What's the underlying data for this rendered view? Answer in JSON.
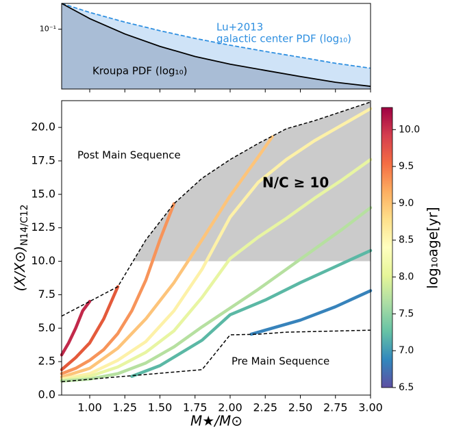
{
  "chart_data": [
    {
      "type": "line",
      "yscale": "log",
      "xlim": [
        0.8,
        3.0
      ],
      "ylim": [
        0.02,
        0.2
      ],
      "yticks": [
        {
          "value": 0.1,
          "label": "10⁻¹"
        }
      ],
      "annotations": [
        {
          "text": "Lu+2013",
          "color": "#2e8fe0"
        },
        {
          "text": "galactic center PDF (log₁₀)",
          "color": "#2e8fe0"
        },
        {
          "text": "Kroupa PDF (log₁₀)",
          "color": "#000000"
        }
      ],
      "series": [
        {
          "color": "#2e8fe0",
          "fill": "#cfe3f7",
          "linestyle": "dashed",
          "x": [
            0.8,
            1.0,
            1.25,
            1.5,
            1.75,
            2.0,
            2.25,
            2.5,
            2.75,
            3.0
          ],
          "values": [
            0.2,
            0.157,
            0.121,
            0.096,
            0.078,
            0.065,
            0.055,
            0.047,
            0.04,
            0.035
          ]
        },
        {
          "color": "#000000",
          "fill": "#a9bdd6",
          "linestyle": "solid",
          "x": [
            0.8,
            1.0,
            1.25,
            1.5,
            1.75,
            2.0,
            2.25,
            2.5,
            2.75,
            3.0
          ],
          "values": [
            0.2,
            0.133,
            0.088,
            0.063,
            0.048,
            0.039,
            0.033,
            0.028,
            0.024,
            0.0215
          ]
        }
      ]
    },
    {
      "type": "line",
      "xlim": [
        0.8,
        3.0
      ],
      "ylim": [
        0,
        22
      ],
      "xlabel": "M★/M⊙",
      "ylabel": "(X/X⊙)",
      "ylabel_sub": "N14/C12",
      "xticks": [
        {
          "value": 1,
          "label": "1.00"
        },
        1.25,
        {
          "value": 1.5,
          "label": "1.50"
        },
        1.75,
        {
          "value": 2,
          "label": "2.00"
        },
        2.25,
        {
          "value": 2.5,
          "label": "2.50"
        },
        2.75,
        {
          "value": 3,
          "label": "3.00"
        }
      ],
      "yticks": [
        {
          "value": 0,
          "label": "0.0"
        },
        2.5,
        {
          "value": 5,
          "label": "5.0"
        },
        7.5,
        {
          "value": 10,
          "label": "10.0"
        },
        12.5,
        {
          "value": 15,
          "label": "15.0"
        },
        17.5,
        {
          "value": 20,
          "label": "20.0"
        }
      ],
      "region_color": "#cbcbcb",
      "annotations": [
        {
          "text": "Post Main Sequence",
          "weight": "normal"
        },
        {
          "text": "Pre Main Sequence",
          "weight": "normal"
        },
        {
          "text": "N/C ≥ 10",
          "weight": "bold"
        }
      ],
      "series": [
        {
          "color": "#c2294a",
          "x": [
            0.8,
            0.85,
            0.9,
            0.95,
            1.0
          ],
          "values": [
            3.0,
            3.9,
            5.0,
            6.3,
            7.0
          ]
        },
        {
          "color": "#e45a3b",
          "x": [
            0.8,
            0.9,
            1.0,
            1.1,
            1.2
          ],
          "values": [
            1.9,
            2.8,
            3.9,
            5.7,
            8.1
          ]
        },
        {
          "color": "#f7945a",
          "x": [
            0.8,
            0.9,
            1.0,
            1.1,
            1.2,
            1.3,
            1.4,
            1.5,
            1.6
          ],
          "values": [
            1.6,
            2.0,
            2.6,
            3.4,
            4.6,
            6.3,
            8.6,
            11.6,
            14.3
          ]
        },
        {
          "color": "#fdc47a",
          "x": [
            0.8,
            1.0,
            1.2,
            1.4,
            1.6,
            1.8,
            2.0,
            2.2,
            2.3
          ],
          "values": [
            1.35,
            2.0,
            3.5,
            5.7,
            8.4,
            11.6,
            14.9,
            17.8,
            19.3
          ]
        },
        {
          "color": "#fdf1a8",
          "x": [
            0.8,
            1.0,
            1.2,
            1.4,
            1.6,
            1.8,
            2.0,
            2.2,
            2.4,
            2.6,
            2.8,
            3.0
          ],
          "values": [
            1.2,
            1.6,
            2.6,
            4.0,
            6.3,
            9.4,
            13.3,
            15.9,
            17.6,
            19.0,
            20.2,
            21.4
          ]
        },
        {
          "color": "#e8f5a2",
          "x": [
            0.8,
            1.0,
            1.2,
            1.4,
            1.6,
            1.8,
            2.0,
            2.2,
            2.4,
            2.6,
            2.8,
            3.0
          ],
          "values": [
            1.1,
            1.4,
            2.1,
            3.2,
            4.8,
            7.3,
            10.2,
            11.8,
            13.2,
            14.7,
            16.1,
            17.6
          ]
        },
        {
          "color": "#b6e0a0",
          "x": [
            0.8,
            1.0,
            1.2,
            1.4,
            1.6,
            1.8,
            2.0,
            2.2,
            2.4,
            2.6,
            2.8,
            3.0
          ],
          "values": [
            1.05,
            1.2,
            1.6,
            2.4,
            3.6,
            5.1,
            6.5,
            7.9,
            9.4,
            10.9,
            12.4,
            14.0
          ]
        },
        {
          "color": "#5bb8a5",
          "x": [
            1.3,
            1.5,
            1.8,
            2.0,
            2.25,
            2.5,
            2.75,
            3.0
          ],
          "values": [
            1.4,
            2.2,
            4.1,
            6.0,
            7.1,
            8.4,
            9.6,
            10.8
          ]
        },
        {
          "color": "#3783bb",
          "x": [
            2.15,
            2.5,
            2.75,
            3.0
          ],
          "values": [
            4.55,
            5.6,
            6.6,
            7.8
          ]
        }
      ],
      "boundaries": [
        {
          "color": "#000000",
          "linestyle": "dashed",
          "x": [
            0.8,
            1.2,
            1.4,
            1.6,
            1.8,
            2.0,
            2.2,
            2.4,
            2.6,
            2.8,
            3.0
          ],
          "values": [
            5.9,
            8.1,
            11.6,
            14.3,
            16.2,
            17.6,
            18.8,
            19.9,
            20.5,
            21.2,
            21.9
          ]
        },
        {
          "color": "#000000",
          "linestyle": "dashed",
          "x": [
            0.8,
            1.8,
            2.0,
            2.2,
            2.4,
            3.0
          ],
          "values": [
            1.0,
            1.9,
            4.5,
            4.55,
            4.7,
            4.85
          ]
        }
      ],
      "colorbar": {
        "label": "log₁₀age[yr]",
        "lim": [
          6.5,
          10.3
        ],
        "ticks": [
          6.5,
          {
            "value": 7,
            "label": "7.0"
          },
          7.5,
          {
            "value": 8,
            "label": "8.0"
          },
          8.5,
          {
            "value": 9,
            "label": "9.0"
          },
          9.5,
          {
            "value": 10,
            "label": "10.0"
          }
        ],
        "colors": [
          "#5e4fa2",
          "#3288bd",
          "#66c2a5",
          "#abdda4",
          "#e6f598",
          "#ffffbf",
          "#fee08b",
          "#fdae61",
          "#f46d43",
          "#d53e4f",
          "#9e0142"
        ]
      }
    }
  ]
}
